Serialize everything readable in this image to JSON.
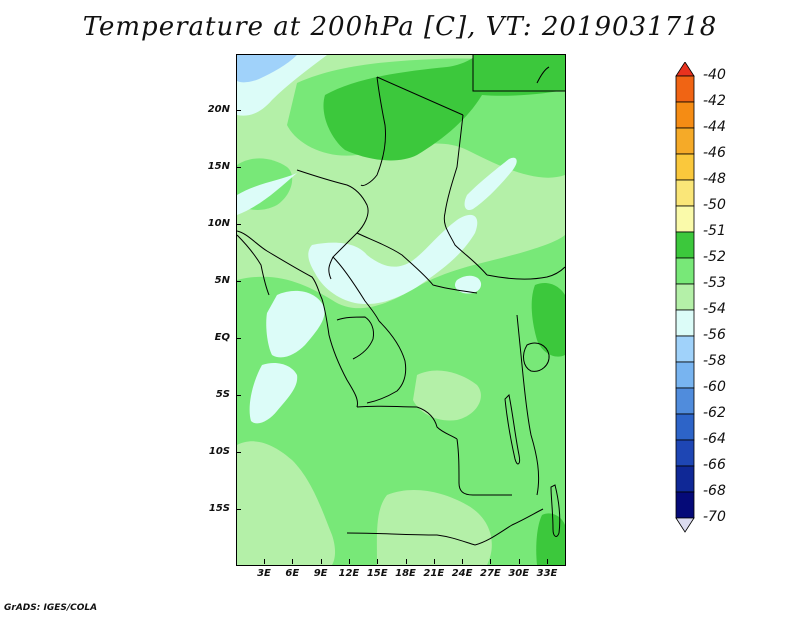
{
  "title": "Temperature at 200hPa [C], VT: 2019031718",
  "footer": "GrADS: IGES/COLA",
  "colors": {
    "m56": "#a0d2fa",
    "m54": "#dcfcf8",
    "m53": "#b4f0a8",
    "m52": "#78e878",
    "m51": "#3cc83c"
  },
  "map": {
    "y_ticks": [
      "20N",
      "15N",
      "10N",
      "5N",
      "EQ",
      "5S",
      "10S",
      "15S"
    ],
    "x_ticks": [
      "3E",
      "6E",
      "9E",
      "12E",
      "15E",
      "18E",
      "21E",
      "24E",
      "27E",
      "30E",
      "33E"
    ]
  },
  "colorbar": {
    "labels": [
      "-40",
      "-42",
      "-44",
      "-46",
      "-48",
      "-50",
      "-51",
      "-52",
      "-53",
      "-54",
      "-56",
      "-58",
      "-60",
      "-62",
      "-64",
      "-66",
      "-68",
      "-70"
    ],
    "colors": [
      "#e8321e",
      "#f06414",
      "#f58c14",
      "#f5aa28",
      "#fac83c",
      "#fae678",
      "#fafaaa",
      "#3cc83c",
      "#78e878",
      "#b4f0a8",
      "#dcfcf8",
      "#a0d2fa",
      "#78b4f0",
      "#508cdc",
      "#2d64c8",
      "#1e46b4",
      "#0f2896",
      "#050a78",
      "#dcdcf0"
    ]
  }
}
